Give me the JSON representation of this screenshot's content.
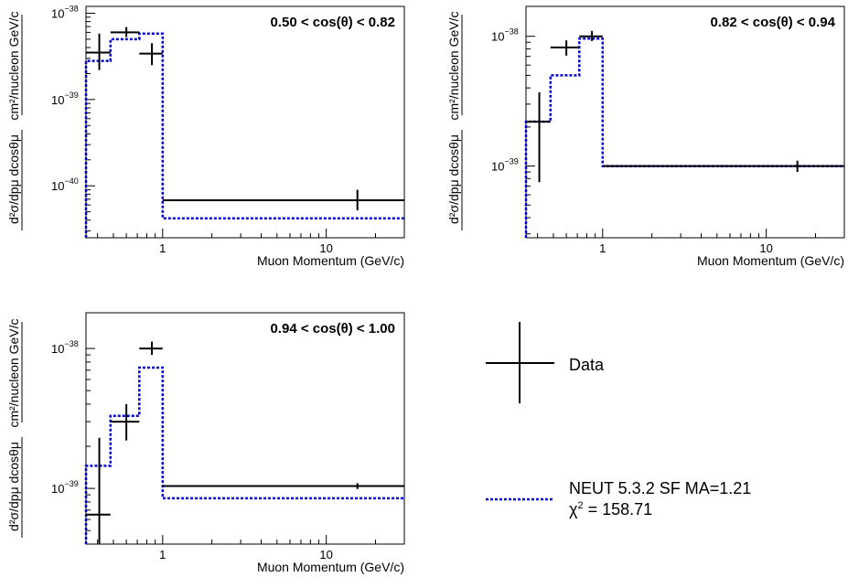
{
  "chart_data": [
    {
      "type": "line",
      "title": "0.50 < cos(θ) < 0.82",
      "xlabel": "Muon Momentum (GeV/c)",
      "ylabel_top": "cm²/nucleon GeV/c",
      "ylabel_bottom": "d²σ/dpμ dcosθμ",
      "x_scale": "log",
      "y_scale": "log",
      "xlim": [
        0.34,
        30
      ],
      "ylim": [
        2.5e-41,
        1.2e-38
      ],
      "x_tick_labels": [
        "1",
        "10"
      ],
      "y_tick_labels": [
        {
          "base": "10",
          "exp": "−38"
        },
        {
          "base": "10",
          "exp": "−39"
        },
        {
          "base": "10",
          "exp": "−40"
        }
      ],
      "bins": [
        0.34,
        0.48,
        0.72,
        1.0,
        30.0
      ],
      "data": {
        "name": "Data",
        "x": [
          0.41,
          0.6,
          0.86,
          15.5
        ],
        "y": [
          3.5e-39,
          6e-39,
          3.4e-39,
          6.8e-41
        ],
        "y_low": [
          2.2e-39,
          5.3e-39,
          2.5e-39,
          5.2e-41
        ],
        "y_high": [
          5.8e-39,
          6.9e-39,
          4.5e-39,
          9e-41
        ]
      },
      "model": {
        "name": "NEUT 5.3.2 SF MA=1.21",
        "values": [
          2.8e-39,
          5e-39,
          5.8e-39,
          4.2e-41
        ]
      }
    },
    {
      "type": "line",
      "title": "0.82 < cos(θ) < 0.94",
      "xlabel": "Muon Momentum (GeV/c)",
      "ylabel_top": "cm²/nucleon GeV/c",
      "ylabel_bottom": "d²σ/dpμ dcosθμ",
      "x_scale": "log",
      "y_scale": "log",
      "xlim": [
        0.34,
        30
      ],
      "ylim": [
        2.8e-40,
        1.7e-38
      ],
      "x_tick_labels": [
        "1",
        "10"
      ],
      "y_tick_labels": [
        {
          "base": "10",
          "exp": "−38"
        },
        {
          "base": "10",
          "exp": "−39"
        }
      ],
      "bins": [
        0.34,
        0.48,
        0.72,
        1.0,
        30.0
      ],
      "data": {
        "name": "Data",
        "x": [
          0.41,
          0.6,
          0.86,
          15.5
        ],
        "y": [
          2.2e-39,
          8.2e-39,
          1e-38,
          1e-39
        ],
        "y_low": [
          7.5e-40,
          7.1e-39,
          9.2e-39,
          9e-40
        ],
        "y_high": [
          3.7e-39,
          9.3e-39,
          1.1e-38,
          1.1e-39
        ]
      },
      "model": {
        "name": "NEUT 5.3.2 SF MA=1.21",
        "values": [
          2.2e-39,
          5e-39,
          9.6e-39,
          1e-39
        ]
      }
    },
    {
      "type": "line",
      "title": "0.94 < cos(θ) < 1.00",
      "xlabel": "Muon Momentum (GeV/c)",
      "ylabel_top": "cm²/nucleon GeV/c",
      "ylabel_bottom": "d²σ/dpμ dcosθμ",
      "x_scale": "log",
      "y_scale": "log",
      "xlim": [
        0.34,
        30
      ],
      "ylim": [
        4e-40,
        1.8e-38
      ],
      "x_tick_labels": [
        "1",
        "10"
      ],
      "y_tick_labels": [
        {
          "base": "10",
          "exp": "−38"
        },
        {
          "base": "10",
          "exp": "−39"
        }
      ],
      "bins": [
        0.34,
        0.48,
        0.72,
        1.0,
        30.0
      ],
      "data": {
        "name": "Data",
        "x": [
          0.41,
          0.6,
          0.86,
          15.5
        ],
        "y": [
          6.5e-40,
          3e-39,
          1e-38,
          1.04e-39
        ],
        "y_low": [
          4e-40,
          2.2e-39,
          9e-39,
          9.9e-40
        ],
        "y_high": [
          2.3e-39,
          4e-39,
          1.12e-38,
          1.09e-39
        ]
      },
      "model": {
        "name": "NEUT 5.3.2 SF MA=1.21",
        "values": [
          1.45e-39,
          3.3e-39,
          7.3e-39,
          8.5e-40
        ]
      }
    }
  ],
  "legend": {
    "data_label": "Data",
    "model_label": "NEUT 5.3.2 SF MA=1.21",
    "chi2_symbol": "χ",
    "chi2_exp": "2",
    "chi2_value": " = 158.71"
  },
  "colors": {
    "data": "#000000",
    "model": "#0000dd",
    "axes": "#000000"
  }
}
